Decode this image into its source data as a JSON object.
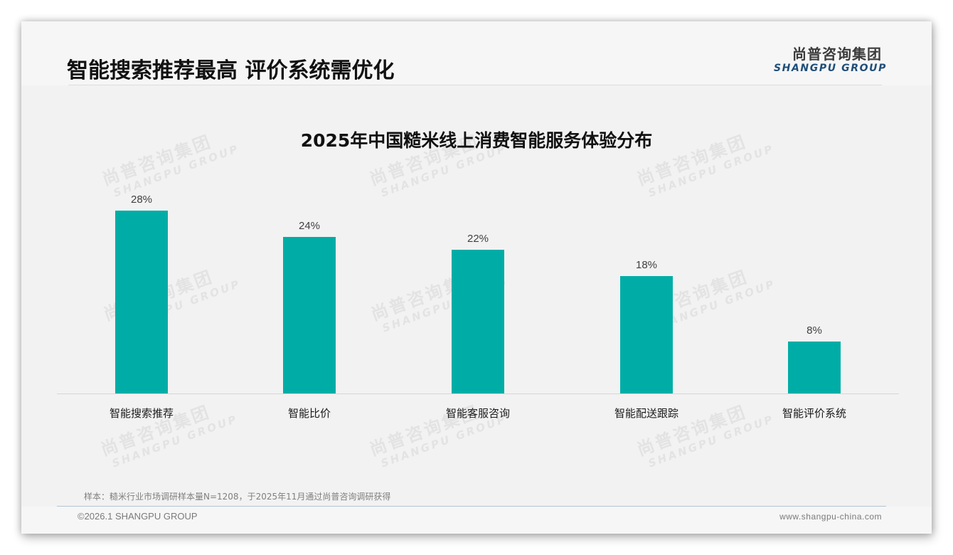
{
  "header": {
    "title": "智能搜索推荐最高 评价系统需优化",
    "logo": {
      "cn": "尚普咨询集团",
      "en": "SHANGPU GROUP"
    }
  },
  "watermark": {
    "cn": "尚普咨询集团",
    "en": "SHANGPU GROUP"
  },
  "colors": {
    "bar": "#00ada6",
    "title": "#111111",
    "logo_en": "#1f4e79"
  },
  "chart_data": {
    "type": "bar",
    "title": "2025年中国糙米线上消费智能服务体验分布",
    "categories": [
      "智能搜索推荐",
      "智能比价",
      "智能客服咨询",
      "智能配送跟踪",
      "智能评价系统"
    ],
    "values": [
      28,
      24,
      22,
      18,
      8
    ],
    "value_labels": [
      "28%",
      "24%",
      "22%",
      "18%",
      "8%"
    ],
    "unit": "%",
    "xlabel": "",
    "ylabel": "",
    "ylim": [
      0,
      30
    ],
    "grid": false,
    "legend": "none",
    "color": "#00ada6"
  },
  "footer": {
    "source": "样本：糙米行业市场调研样本量N=1208，于2025年11月通过尚普咨询调研获得",
    "copyright": "©2026.1 SHANGPU GROUP",
    "website": "www.shangpu-china.com"
  }
}
